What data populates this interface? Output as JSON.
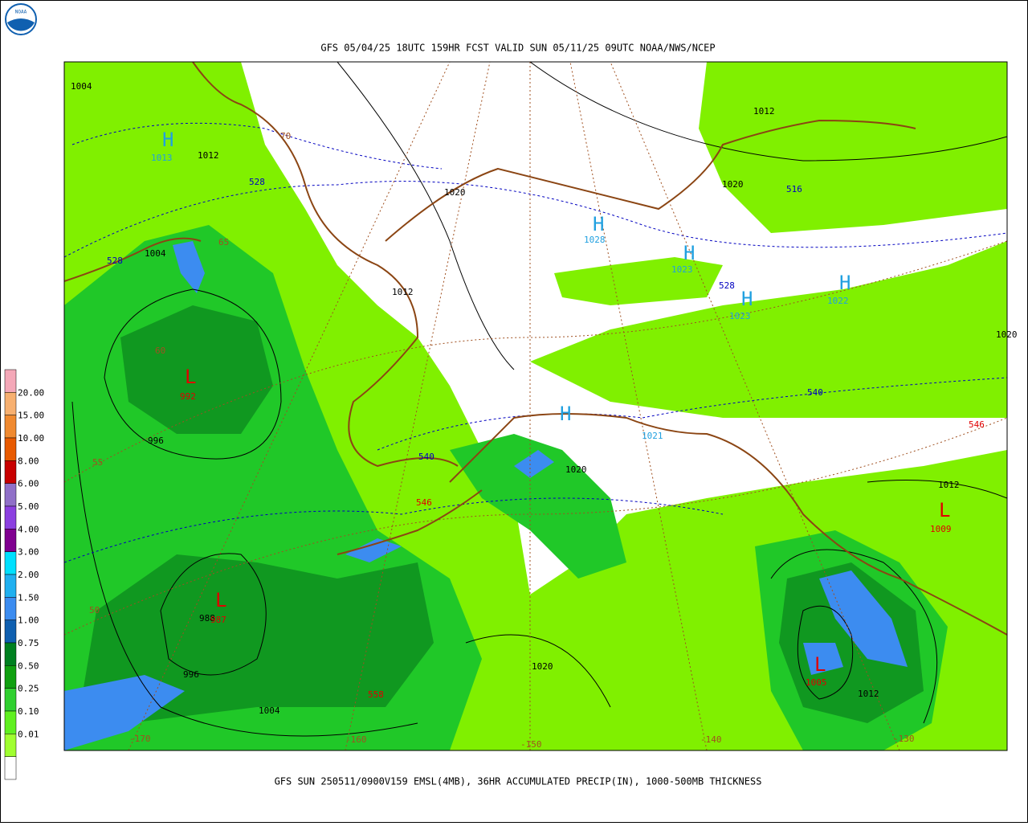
{
  "header": {
    "title": "GFS 05/04/25 18UTC 159HR FCST VALID SUN 05/11/25 09UTC NOAA/NWS/NCEP"
  },
  "logo": {
    "text": "NOAA"
  },
  "footer": {
    "caption": "GFS SUN 250511/0900V159 EMSL(4MB), 36HR ACCUMULATED PRECIP(IN), 1000-500MB THICKNESS"
  },
  "legend": {
    "colors": [
      "#f4a8b8",
      "#f7b070",
      "#f08a30",
      "#e85a00",
      "#c80000",
      "#9070c8",
      "#8c40e0",
      "#800090",
      "#00e0ff",
      "#20b0f0",
      "#3c8cf0",
      "#1060b0",
      "#008020",
      "#10a010",
      "#30d030",
      "#60f020",
      "#a0ff30",
      "#ffffff"
    ],
    "labels": [
      "20.00",
      "15.00",
      "10.00",
      "8.00",
      "6.00",
      "5.00",
      "4.00",
      "3.00",
      "2.00",
      "1.50",
      "1.00",
      "0.75",
      "0.50",
      "0.25",
      "0.10",
      "0.01"
    ]
  },
  "map": {
    "labels": [
      {
        "text": "1004",
        "color": "#000000"
      },
      {
        "text": "H",
        "color": "#20a0e0"
      },
      {
        "text": "1013",
        "color": "#20a0e0"
      },
      {
        "text": "1012",
        "color": "#000000"
      },
      {
        "text": "528",
        "color": "#0000c0"
      },
      {
        "text": "1020",
        "color": "#000000"
      },
      {
        "text": "H",
        "color": "#20a0e0"
      },
      {
        "text": "1028",
        "color": "#20a0e0"
      },
      {
        "text": "1012",
        "color": "#000000"
      },
      {
        "text": "1020",
        "color": "#000000"
      },
      {
        "text": "516",
        "color": "#0000c0"
      },
      {
        "text": "H",
        "color": "#20a0e0"
      },
      {
        "text": "1023",
        "color": "#20a0e0"
      },
      {
        "text": "528",
        "color": "#0000c0"
      },
      {
        "text": "H",
        "color": "#20a0e0"
      },
      {
        "text": "1023",
        "color": "#20a0e0"
      },
      {
        "text": "H",
        "color": "#20a0e0"
      },
      {
        "text": "1022",
        "color": "#20a0e0"
      },
      {
        "text": "1020",
        "color": "#000000"
      },
      {
        "text": "528",
        "color": "#0000c0"
      },
      {
        "text": "1004",
        "color": "#000000"
      },
      {
        "text": "1012",
        "color": "#000000"
      },
      {
        "text": "60",
        "color": "#a05020"
      },
      {
        "text": "L",
        "color": "#e00000"
      },
      {
        "text": "992",
        "color": "#e00000"
      },
      {
        "text": "996",
        "color": "#000000"
      },
      {
        "text": "55",
        "color": "#a05020"
      },
      {
        "text": "540",
        "color": "#0000c0"
      },
      {
        "text": "546",
        "color": "#e00000"
      },
      {
        "text": "1020",
        "color": "#000000"
      },
      {
        "text": "540",
        "color": "#0000c0"
      },
      {
        "text": "H",
        "color": "#20a0e0"
      },
      {
        "text": "1021",
        "color": "#20a0e0"
      },
      {
        "text": "546",
        "color": "#e00000"
      },
      {
        "text": "1012",
        "color": "#000000"
      },
      {
        "text": "L",
        "color": "#e00000"
      },
      {
        "text": "1009",
        "color": "#e00000"
      },
      {
        "text": "50",
        "color": "#a05020"
      },
      {
        "text": "L",
        "color": "#e00000"
      },
      {
        "text": "988",
        "color": "#000000"
      },
      {
        "text": "987",
        "color": "#e00000"
      },
      {
        "text": "996",
        "color": "#000000"
      },
      {
        "text": "1004",
        "color": "#000000"
      },
      {
        "text": "558",
        "color": "#e00000"
      },
      {
        "text": "1020",
        "color": "#000000"
      },
      {
        "text": "L",
        "color": "#e00000"
      },
      {
        "text": "1005",
        "color": "#e00000"
      },
      {
        "text": "1012",
        "color": "#000000"
      },
      {
        "text": "-170",
        "color": "#a05020"
      },
      {
        "text": "-160",
        "color": "#a05020"
      },
      {
        "text": "-150",
        "color": "#a05020"
      },
      {
        "text": "-140",
        "color": "#a05020"
      },
      {
        "text": "-130",
        "color": "#a05020"
      },
      {
        "text": "70",
        "color": "#a05020"
      },
      {
        "text": "65",
        "color": "#a05020"
      }
    ]
  }
}
